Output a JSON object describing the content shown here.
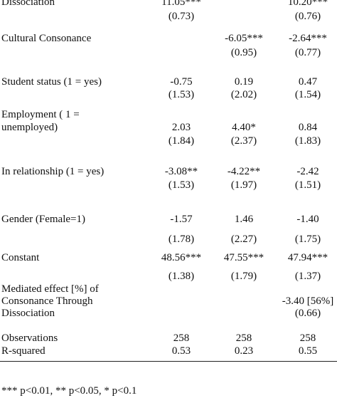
{
  "rows": {
    "dissociation": {
      "label": "Dissociation",
      "c1": "11.05***",
      "c1se": "(0.73)",
      "c2": "",
      "c2se": "",
      "c3": "10.20***",
      "c3se": "(0.76)"
    },
    "cultural": {
      "label": "Cultural Consonance",
      "c1": "",
      "c1se": "",
      "c2": "-6.05***",
      "c2se": "(0.95)",
      "c3": "-2.64***",
      "c3se": "(0.77)"
    },
    "student": {
      "label": "Student status (1 = yes)",
      "c1": "-0.75",
      "c1se": "(1.53)",
      "c2": "0.19",
      "c2se": "(2.02)",
      "c3": "0.47",
      "c3se": "(1.54)"
    },
    "employment": {
      "label1": "Employment ( 1 =",
      "label2": "unemployed)",
      "c1": "2.03",
      "c1se": "(1.84)",
      "c2": "4.40*",
      "c2se": "(2.37)",
      "c3": "0.84",
      "c3se": "(1.83)"
    },
    "relationship": {
      "label": "In relationship (1 = yes)",
      "c1": "-3.08**",
      "c1se": "(1.53)",
      "c2": "-4.22**",
      "c2se": "(1.97)",
      "c3": "-2.42",
      "c3se": "(1.51)"
    },
    "gender": {
      "label": "Gender (Female=1)",
      "c1": "-1.57",
      "c1se": "(1.78)",
      "c2": "1.46",
      "c2se": "(2.27)",
      "c3": "-1.40",
      "c3se": "(1.75)"
    },
    "constant": {
      "label": "Constant",
      "c1": "48.56***",
      "c1se": "(1.38)",
      "c2": "47.55***",
      "c2se": "(1.79)",
      "c3": "47.94***",
      "c3se": "(1.37)"
    },
    "mediated": {
      "label1": "Mediated effect [%] of",
      "label2": "Consonance Through",
      "label3": "Dissociation",
      "c3": "-3.40 [56%]",
      "c3se": "(0.66)"
    },
    "observations": {
      "label": "Observations",
      "c1": "258",
      "c2": "258",
      "c3": "258"
    },
    "rsquared": {
      "label": "R-squared",
      "c1": "0.53",
      "c2": "0.23",
      "c3": "0.55"
    }
  },
  "footnote": "*** p<0.01, ** p<0.05, * p<0.1"
}
